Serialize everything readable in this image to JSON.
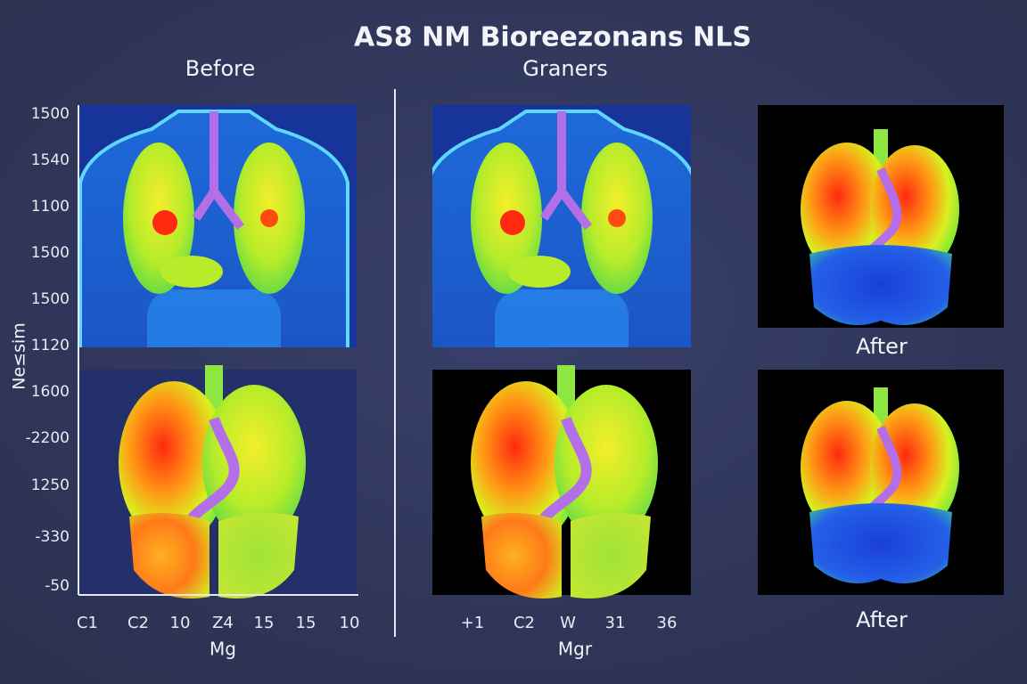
{
  "title": "AS8 NM Bioreezonans NLS",
  "panels": {
    "left_heading": "Before",
    "middle_heading": "Graners",
    "right_top_label": "After",
    "right_bottom_label": "After"
  },
  "left_axis": {
    "y_title": "Ne≤sim",
    "y_labels": [
      "1500",
      "1540",
      "1100",
      "1500",
      "1500",
      "1120",
      "1600",
      "-2200",
      "1250",
      "-330",
      "-50"
    ],
    "x_labels": [
      "C1",
      "C2",
      "10",
      "Z4",
      "15",
      "15",
      "10"
    ],
    "x_title": "Mg"
  },
  "middle_axis": {
    "x_labels": [
      "+1",
      "C2",
      "W",
      "31",
      "36"
    ],
    "x_title": "Mgr"
  }
}
